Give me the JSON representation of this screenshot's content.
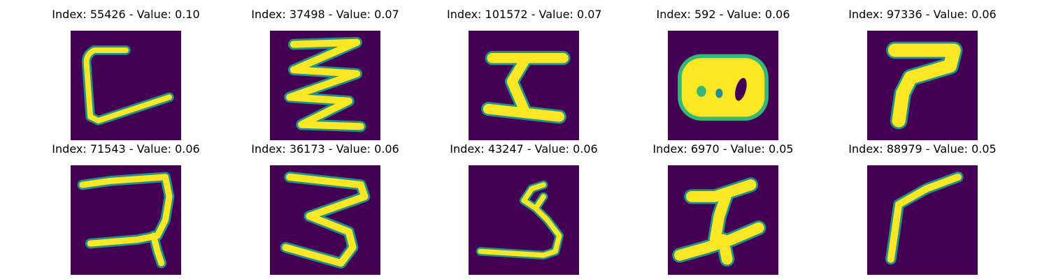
{
  "colors": {
    "background": "#440154",
    "stroke": "#fde725",
    "edge": "#35b779",
    "edge_dark": "#21918c"
  },
  "tiles": [
    {
      "title": "Index: 55426 - Value: 0.10"
    },
    {
      "title": "Index: 37498 - Value: 0.07"
    },
    {
      "title": "Index: 101572 - Value: 0.07"
    },
    {
      "title": "Index: 592 - Value: 0.06"
    },
    {
      "title": "Index: 97336 - Value: 0.06"
    },
    {
      "title": "Index: 71543 - Value: 0.06"
    },
    {
      "title": "Index: 36173 - Value: 0.06"
    },
    {
      "title": "Index: 43247 - Value: 0.06"
    },
    {
      "title": "Index: 6970 - Value: 0.05"
    },
    {
      "title": "Index: 88979 - Value: 0.05"
    }
  ]
}
